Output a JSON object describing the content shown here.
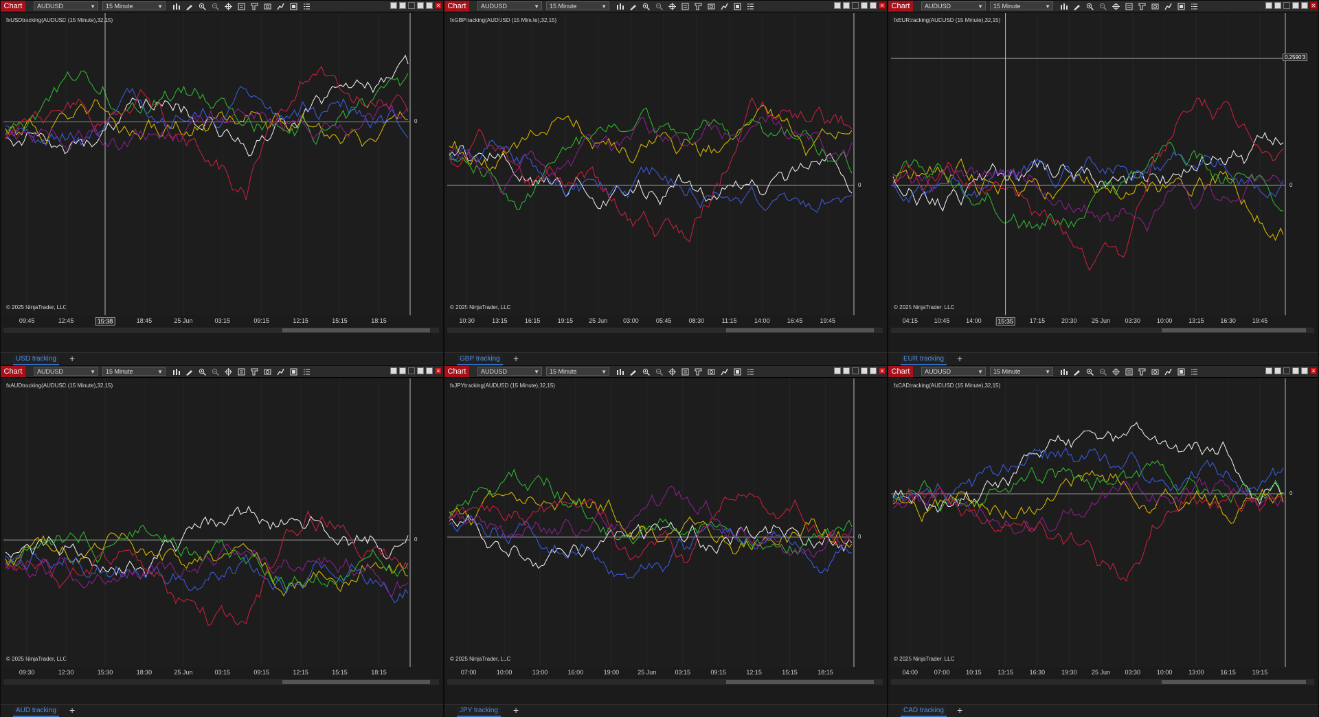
{
  "common": {
    "chart_button": "Chart",
    "instrument": "AUDUSD",
    "interval": "15 Minute",
    "copyright": "© 2025 NinjaTrader, LLC",
    "zero_label": "0",
    "icons": [
      "bars-icon",
      "pencil-icon",
      "zoom-in-icon",
      "zoom-out-icon",
      "crosshair-icon",
      "properties-icon",
      "strategy-icon",
      "snapshot-icon",
      "chart-trader-icon",
      "data-box-icon",
      "list-icon"
    ],
    "series_colors": [
      "#e8e8e8",
      "#d4b400",
      "#2fb52f",
      "#3a5ad8",
      "#8a1f8a",
      "#c3203c"
    ]
  },
  "panels": [
    {
      "indicator": "fxUSDtracking(AUDUSD (15 Minute),32,15)",
      "tab": "USD tracking",
      "ticks": [
        "09:45",
        "12:45",
        "15:38",
        "18:45",
        "25 Jun",
        "03:15",
        "09:15",
        "12:15",
        "15:15",
        "18:15"
      ],
      "highlight_tick": "15:38",
      "y_cross": ""
    },
    {
      "indicator": "fxGBPtracking(AUDUSD (15 Minute),32,15)",
      "tab": "GBP tracking",
      "ticks": [
        "10:30",
        "13:15",
        "16:15",
        "19:15",
        "25 Jun",
        "03:00",
        "05:45",
        "08:30",
        "11:15",
        "14:00",
        "16:45",
        "19:45"
      ],
      "highlight_tick": "",
      "y_cross": ""
    },
    {
      "indicator": "fxEURtracking(AUDUSD (15 Minute),32,15)",
      "tab": "EUR tracking",
      "ticks": [
        "04:15",
        "10:45",
        "14:00",
        "15:35",
        "17:15",
        "20:30",
        "25 Jun",
        "03:30",
        "10:00",
        "13:15",
        "16:30",
        "19:45"
      ],
      "highlight_tick": "15:35",
      "y_cross": "0.2590'3"
    },
    {
      "indicator": "fxAUDtracking(AUDUSD (15 Minute),32,15)",
      "tab": "AUD tracking",
      "ticks": [
        "09:30",
        "12:30",
        "15:30",
        "18:30",
        "25 Jun",
        "03:15",
        "09:15",
        "12:15",
        "15:15",
        "18:15"
      ],
      "highlight_tick": "",
      "y_cross": ""
    },
    {
      "indicator": "fxJPYtracking(AUDUSD (15 Minute),32,15)",
      "tab": "JPY tracking",
      "ticks": [
        "07:00",
        "10:00",
        "13:00",
        "16:00",
        "19:00",
        "25 Jun",
        "03:15",
        "09:15",
        "12:15",
        "15:15",
        "18:15"
      ],
      "highlight_tick": "",
      "y_cross": ""
    },
    {
      "indicator": "fxCADtracking(AUDUSD (15 Minute),32,15)",
      "tab": "CAD tracking",
      "ticks": [
        "04:00",
        "07:00",
        "10:15",
        "13:15",
        "16:30",
        "19:30",
        "25 Jun",
        "03:30",
        "10:00",
        "13:00",
        "16:15",
        "19:15"
      ],
      "highlight_tick": "",
      "y_cross": ""
    }
  ]
}
